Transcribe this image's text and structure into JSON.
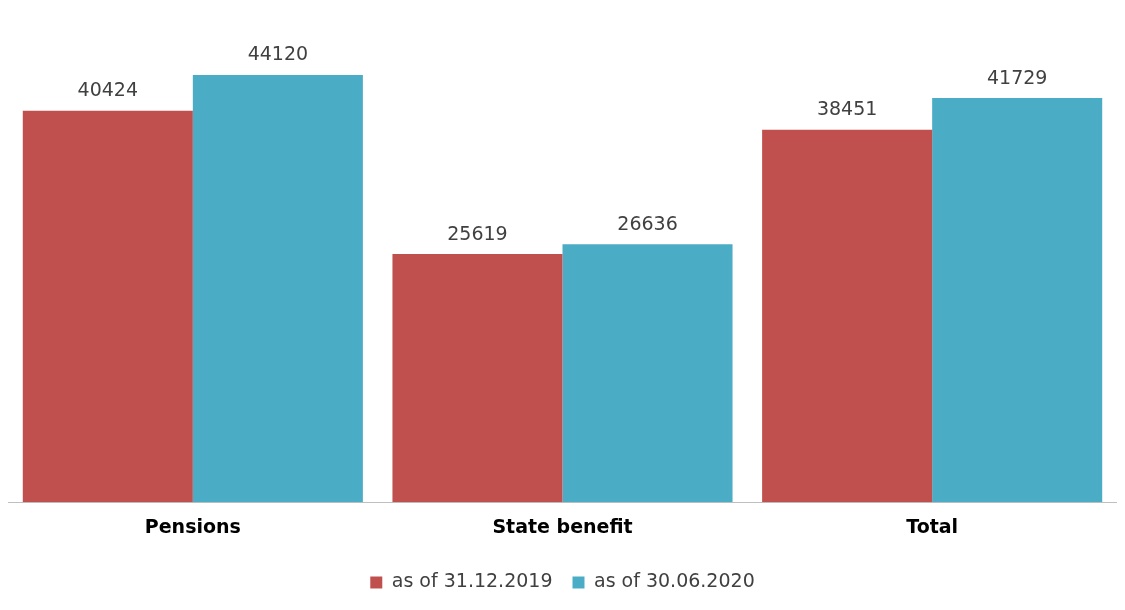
{
  "chart_data": {
    "type": "bar",
    "categories": [
      "Pensions",
      "State benefit",
      "Total"
    ],
    "series": [
      {
        "name": "as of 31.12.2019",
        "color": "#c0504d",
        "values": [
          40424,
          25619,
          38451
        ]
      },
      {
        "name": "as of 30.06.2020",
        "color": "#4bacc6",
        "values": [
          44120,
          26636,
          41729
        ]
      }
    ],
    "data_labels": true,
    "legend": "bottom",
    "grid": false
  }
}
